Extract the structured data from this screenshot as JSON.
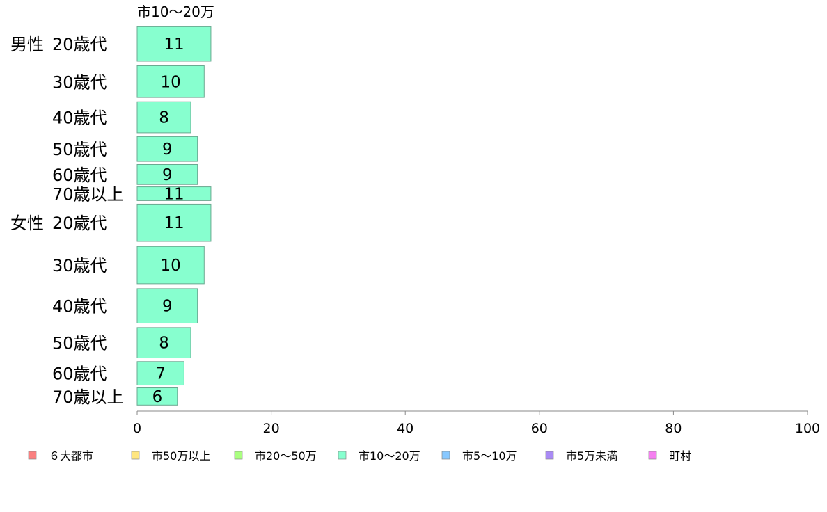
{
  "chart_data": {
    "type": "bar",
    "orientation": "horizontal",
    "stacked": true,
    "series_title": "市10〜20万",
    "groups": [
      "男性",
      "女性"
    ],
    "categories": [
      {
        "group": "男性",
        "age": "20歳代"
      },
      {
        "group": "",
        "age": "30歳代"
      },
      {
        "group": "",
        "age": "40歳代"
      },
      {
        "group": "",
        "age": "50歳代"
      },
      {
        "group": "",
        "age": "60歳代"
      },
      {
        "group": "",
        "age": "70歳以上"
      },
      {
        "group": "女性",
        "age": "20歳代"
      },
      {
        "group": "",
        "age": "30歳代"
      },
      {
        "group": "",
        "age": "40歳代"
      },
      {
        "group": "",
        "age": "50歳代"
      },
      {
        "group": "",
        "age": "60歳代"
      },
      {
        "group": "",
        "age": "70歳以上"
      }
    ],
    "weights": [
      1.0,
      0.92,
      0.9,
      0.72,
      0.58,
      0.4,
      1.08,
      1.08,
      1.0,
      0.88,
      0.68,
      0.5
    ],
    "series": [
      {
        "name": "市10〜20万",
        "color": "#87ffcf",
        "values": [
          11,
          10,
          8,
          9,
          9,
          11,
          11,
          10,
          9,
          8,
          7,
          6
        ],
        "labels": [
          "11",
          "10",
          "8",
          "9",
          "9",
          "11",
          "11",
          "10",
          "9",
          "8",
          "7",
          "6"
        ]
      }
    ],
    "xlim": [
      0,
      100
    ],
    "xticks": [
      "0",
      "20",
      "40",
      "60",
      "80",
      "100"
    ],
    "legend": {
      "position": "bottom",
      "entries": [
        {
          "name": "６大都市",
          "color": "#fa8080"
        },
        {
          "name": "市50万以上",
          "color": "#ffe680"
        },
        {
          "name": "市20〜50万",
          "color": "#aaff80"
        },
        {
          "name": "市10〜20万",
          "color": "#87ffcf"
        },
        {
          "name": "市5〜10万",
          "color": "#87c8ff"
        },
        {
          "name": "市5万未満",
          "color": "#a98af5"
        },
        {
          "name": "町村",
          "color": "#f580f0"
        }
      ]
    },
    "grid": false
  }
}
